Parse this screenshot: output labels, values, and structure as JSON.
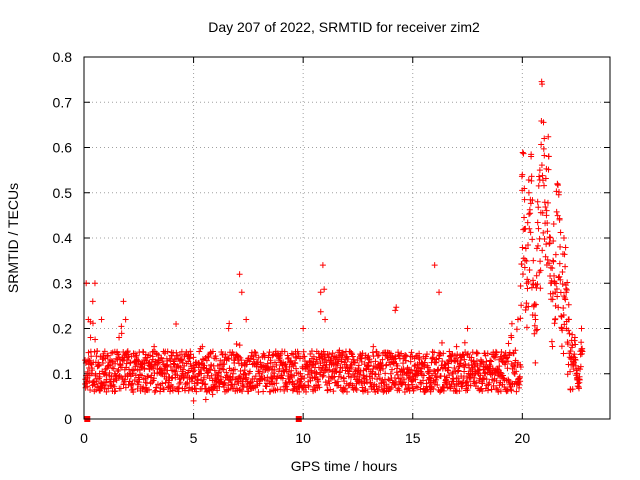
{
  "chart_data": {
    "type": "scatter",
    "title": "Day 207 of 2022, SRMTID for receiver zim2",
    "xlabel": "GPS time / hours",
    "ylabel": "SRMTID / TECUs",
    "xlim": [
      0,
      24
    ],
    "ylim": [
      0,
      0.8
    ],
    "xticks": [
      0,
      5,
      10,
      15,
      20
    ],
    "yticks": [
      0,
      0.1,
      0.2,
      0.3,
      0.4,
      0.5,
      0.6,
      0.7,
      0.8
    ],
    "xtick_labels": [
      "0",
      "5",
      "10",
      "15",
      "20"
    ],
    "ytick_labels": [
      "0",
      "0.1",
      "0.2",
      "0.3",
      "0.4",
      "0.5",
      "0.6",
      "0.7",
      "0.8"
    ],
    "grid": true,
    "marker": "+",
    "color": "#ff0000",
    "series": [
      {
        "name": "SRMTID",
        "x": [
          0.05,
          0.1,
          0.2,
          0.3,
          0.4,
          0.5,
          0.6,
          0.7,
          0.8,
          0.9,
          1.0,
          1.2,
          1.4,
          1.6,
          1.8,
          1.9,
          2.0,
          2.2,
          2.4,
          2.6,
          2.8,
          3.0,
          3.2,
          3.5,
          3.8,
          4.0,
          4.2,
          4.5,
          4.8,
          5.0,
          5.2,
          5.4,
          5.6,
          5.8,
          6.0,
          6.2,
          6.4,
          6.6,
          6.8,
          7.0,
          7.1,
          7.2,
          7.4,
          7.6,
          7.8,
          8.0,
          8.3,
          8.6,
          8.9,
          9.2,
          9.5,
          9.8,
          10.0,
          10.2,
          10.4,
          10.6,
          10.8,
          10.9,
          11.0,
          11.2,
          11.5,
          11.8,
          12.0,
          12.2,
          12.5,
          12.8,
          13.0,
          13.2,
          13.5,
          13.8,
          14.0,
          14.2,
          14.5,
          14.8,
          15.0,
          15.2,
          15.5,
          15.8,
          16.0,
          16.2,
          16.5,
          16.8,
          17.0,
          17.2,
          17.5,
          17.8,
          18.0,
          18.2,
          18.5,
          18.8,
          19.0,
          19.2,
          19.5,
          19.8,
          19.9,
          20.0,
          20.1,
          20.2,
          20.3,
          20.4,
          20.5,
          20.6,
          20.7,
          20.8,
          20.9,
          21.0,
          21.1,
          21.2,
          21.3,
          21.4,
          21.5,
          21.6,
          21.7,
          21.8,
          21.9,
          22.0,
          22.1,
          22.2,
          22.3,
          22.4,
          22.5,
          22.6,
          22.7
        ],
        "y": [
          0.13,
          0.3,
          0.22,
          0.18,
          0.26,
          0.3,
          0.15,
          0.12,
          0.22,
          0.1,
          0.08,
          0.12,
          0.1,
          0.18,
          0.26,
          0.22,
          0.15,
          0.1,
          0.14,
          0.12,
          0.09,
          0.11,
          0.16,
          0.1,
          0.12,
          0.09,
          0.21,
          0.1,
          0.07,
          0.04,
          0.08,
          0.16,
          0.06,
          0.07,
          0.09,
          0.12,
          0.08,
          0.2,
          0.1,
          0.14,
          0.32,
          0.28,
          0.22,
          0.08,
          0.12,
          0.1,
          0.11,
          0.09,
          0.13,
          0.11,
          0.12,
          0.1,
          0.2,
          0.12,
          0.15,
          0.1,
          0.28,
          0.34,
          0.22,
          0.12,
          0.08,
          0.14,
          0.06,
          0.12,
          0.1,
          0.08,
          0.11,
          0.16,
          0.09,
          0.12,
          0.1,
          0.24,
          0.11,
          0.09,
          0.1,
          0.14,
          0.12,
          0.09,
          0.34,
          0.28,
          0.12,
          0.1,
          0.16,
          0.13,
          0.2,
          0.12,
          0.1,
          0.09,
          0.12,
          0.11,
          0.08,
          0.14,
          0.18,
          0.22,
          0.12,
          0.54,
          0.42,
          0.3,
          0.5,
          0.58,
          0.35,
          0.22,
          0.48,
          0.55,
          0.74,
          0.62,
          0.45,
          0.58,
          0.3,
          0.35,
          0.28,
          0.52,
          0.44,
          0.2,
          0.4,
          0.28,
          0.22,
          0.15,
          0.12,
          0.18,
          0.1,
          0.08,
          0.2
        ]
      }
    ],
    "axis_markers_x": [
      0.15,
      9.8
    ]
  }
}
